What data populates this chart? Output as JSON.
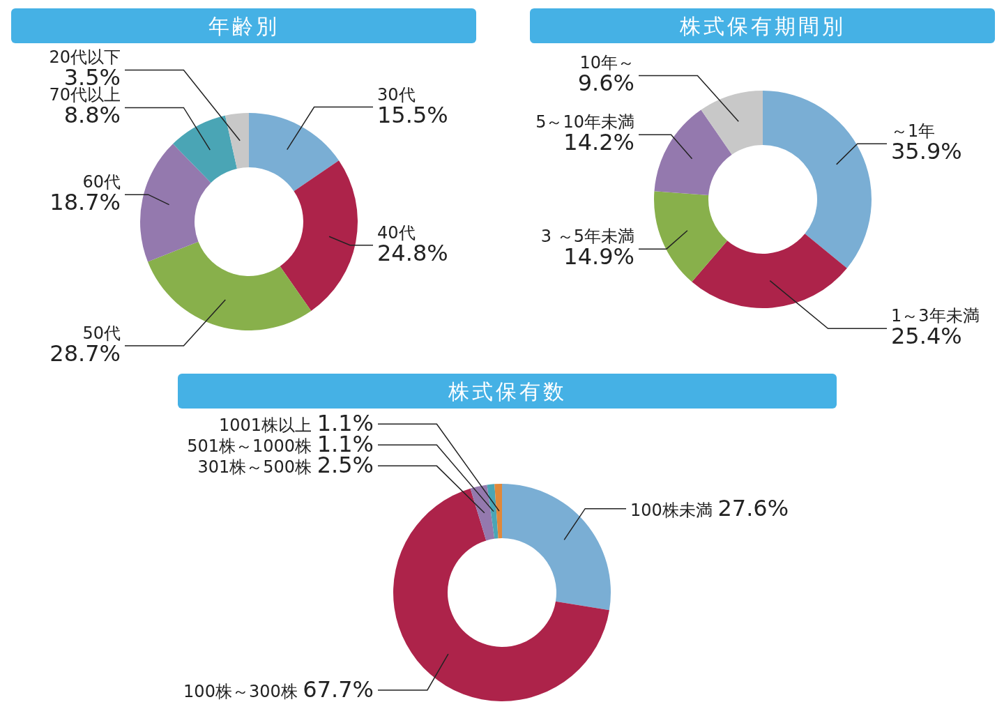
{
  "chart_data": [
    {
      "type": "donut",
      "title": "年齢別",
      "categories": [
        "30代",
        "40代",
        "50代",
        "60代",
        "70代以上",
        "20代以下"
      ],
      "values": [
        15.5,
        24.8,
        28.7,
        18.7,
        8.8,
        3.5
      ],
      "value_labels": [
        "15.5%",
        "24.8%",
        "28.7%",
        "18.7%",
        "8.8%",
        "3.5%"
      ],
      "colors": [
        "#7aaed4",
        "#ad234a",
        "#88b04b",
        "#9479ae",
        "#4aa5b5",
        "#c8c8c8"
      ]
    },
    {
      "type": "donut",
      "title": "株式保有期間別",
      "categories": [
        "～1年",
        "1～3年未満",
        "3 ～5年未満",
        "5～10年未満",
        "10年～"
      ],
      "values": [
        35.9,
        25.4,
        14.9,
        14.2,
        9.6
      ],
      "value_labels": [
        "35.9%",
        "25.4%",
        "14.9%",
        "14.2%",
        "9.6%"
      ],
      "colors": [
        "#7aaed4",
        "#ad234a",
        "#88b04b",
        "#9479ae",
        "#c8c8c8"
      ]
    },
    {
      "type": "donut",
      "title": "株式保有数",
      "categories": [
        "100株未満",
        "100株～300株",
        "301株～500株",
        "501株～1000株",
        "1001株以上"
      ],
      "values": [
        27.6,
        67.7,
        2.5,
        1.1,
        1.1
      ],
      "value_labels": [
        "27.6%",
        "67.7%",
        "2.5%",
        "1.1%",
        "1.1%"
      ],
      "colors": [
        "#7aaed4",
        "#ad234a",
        "#9479ae",
        "#4aa5b5",
        "#e0883a"
      ]
    }
  ]
}
